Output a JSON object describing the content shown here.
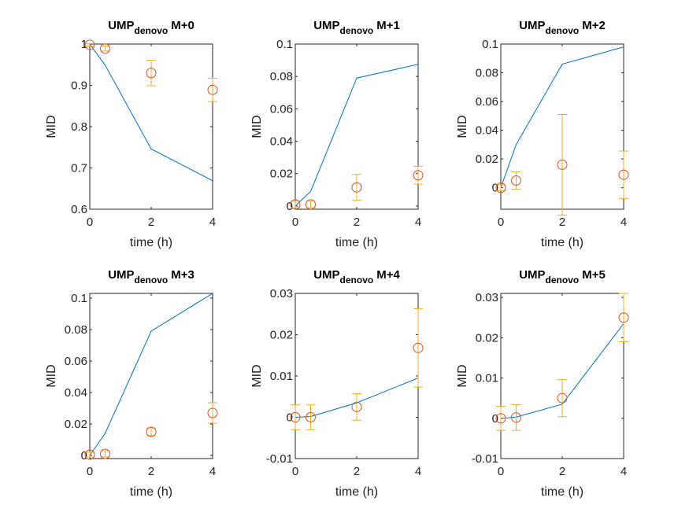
{
  "chart_data": [
    {
      "type": "line",
      "title": "UMP",
      "title_sub": "denovo",
      "title_suffix": "M+0",
      "xlabel": "time (h)",
      "ylabel": "MID",
      "xlim": [
        0,
        4
      ],
      "ylim": [
        0.6,
        1
      ],
      "xticks": [
        0,
        2,
        4
      ],
      "yticks": [
        0.6,
        0.7,
        0.8,
        0.9,
        1
      ],
      "ytick_labels": [
        "0.6",
        "0.7",
        "0.8",
        "0.9",
        "1"
      ],
      "series": [
        {
          "kind": "line",
          "x": [
            0,
            0.5,
            2,
            4
          ],
          "y": [
            1.0,
            0.949,
            0.746,
            0.669
          ]
        },
        {
          "kind": "errorbar",
          "x": [
            0,
            0.5,
            2,
            4
          ],
          "y": [
            0.998,
            0.989,
            0.93,
            0.889
          ],
          "err": [
            0.003,
            0.006,
            0.031,
            0.028
          ]
        }
      ]
    },
    {
      "type": "line",
      "title": "UMP",
      "title_sub": "denovo",
      "title_suffix": "M+1",
      "xlabel": "time (h)",
      "ylabel": "MID",
      "xlim": [
        0,
        4
      ],
      "ylim": [
        -0.002,
        0.1
      ],
      "xticks": [
        0,
        2,
        4
      ],
      "yticks": [
        0,
        0.02,
        0.04,
        0.06,
        0.08,
        0.1
      ],
      "ytick_labels": [
        "0",
        "0.02",
        "0.04",
        "0.06",
        "0.08",
        "0.1"
      ],
      "series": [
        {
          "kind": "line",
          "x": [
            0,
            0.5,
            2,
            4
          ],
          "y": [
            0.0,
            0.009,
            0.079,
            0.0875
          ]
        },
        {
          "kind": "errorbar",
          "x": [
            0,
            0.5,
            2,
            4
          ],
          "y": [
            0.001,
            0.001,
            0.0115,
            0.019
          ],
          "err": [
            0.002,
            0.002,
            0.008,
            0.0055
          ]
        }
      ]
    },
    {
      "type": "line",
      "title": "UMP",
      "title_sub": "denovo",
      "title_suffix": "M+2",
      "xlabel": "time (h)",
      "ylabel": "MID",
      "xlim": [
        0,
        4
      ],
      "ylim": [
        -0.015,
        0.1
      ],
      "xticks": [
        0,
        2,
        4
      ],
      "yticks": [
        0,
        0.02,
        0.04,
        0.06,
        0.08,
        0.1
      ],
      "ytick_labels": [
        "0",
        "0.02",
        "0.04",
        "0.06",
        "0.08",
        "0.1"
      ],
      "series": [
        {
          "kind": "line",
          "x": [
            0,
            0.5,
            2,
            4
          ],
          "y": [
            0.0,
            0.03,
            0.086,
            0.098
          ]
        },
        {
          "kind": "errorbar",
          "x": [
            0,
            0.5,
            2,
            4
          ],
          "y": [
            0.0,
            0.005,
            0.016,
            0.009
          ],
          "err": [
            0.002,
            0.006,
            0.035,
            0.0165
          ]
        }
      ]
    },
    {
      "type": "line",
      "title": "UMP",
      "title_sub": "denovo",
      "title_suffix": "M+3",
      "xlabel": "time (h)",
      "ylabel": "MID",
      "xlim": [
        0,
        4
      ],
      "ylim": [
        -0.002,
        0.103
      ],
      "xticks": [
        0,
        2,
        4
      ],
      "yticks": [
        0,
        0.02,
        0.04,
        0.06,
        0.08,
        0.1
      ],
      "ytick_labels": [
        "0",
        "0.02",
        "0.04",
        "0.06",
        "0.08",
        "0.1"
      ],
      "series": [
        {
          "kind": "line",
          "x": [
            0,
            0.5,
            2,
            4
          ],
          "y": [
            0.0,
            0.014,
            0.079,
            0.103
          ]
        },
        {
          "kind": "errorbar",
          "x": [
            0,
            0.5,
            2,
            4
          ],
          "y": [
            0.0005,
            0.001,
            0.015,
            0.027
          ],
          "err": [
            0.0015,
            0.002,
            0.0025,
            0.0065
          ]
        }
      ]
    },
    {
      "type": "line",
      "title": "UMP",
      "title_sub": "denovo",
      "title_suffix": "M+4",
      "xlabel": "time (h)",
      "ylabel": "MID",
      "xlim": [
        0,
        4
      ],
      "ylim": [
        -0.01,
        0.03
      ],
      "xticks": [
        0,
        2,
        4
      ],
      "yticks": [
        -0.01,
        0,
        0.01,
        0.02,
        0.03
      ],
      "ytick_labels": [
        "-0.01",
        "0",
        "0.01",
        "0.02",
        "0.03"
      ],
      "series": [
        {
          "kind": "line",
          "x": [
            0,
            0.5,
            2,
            4
          ],
          "y": [
            0.0,
            0.0002,
            0.0035,
            0.0095
          ]
        },
        {
          "kind": "errorbar",
          "x": [
            0,
            0.5,
            2,
            4
          ],
          "y": [
            0.0,
            0.0,
            0.0025,
            0.0168
          ],
          "err": [
            0.003,
            0.003,
            0.0032,
            0.0095
          ]
        }
      ]
    },
    {
      "type": "line",
      "title": "UMP",
      "title_sub": "denovo",
      "title_suffix": "M+5",
      "xlabel": "time (h)",
      "ylabel": "MID",
      "xlim": [
        0,
        4
      ],
      "ylim": [
        -0.01,
        0.031
      ],
      "xticks": [
        0,
        2,
        4
      ],
      "yticks": [
        -0.01,
        0,
        0.01,
        0.02,
        0.03
      ],
      "ytick_labels": [
        "-0.01",
        "0",
        "0.01",
        "0.02",
        "0.03"
      ],
      "series": [
        {
          "kind": "line",
          "x": [
            0,
            0.5,
            2,
            4
          ],
          "y": [
            0.0,
            0.0003,
            0.0035,
            0.0235
          ]
        },
        {
          "kind": "errorbar",
          "x": [
            0,
            0.5,
            2,
            4
          ],
          "y": [
            0.0,
            0.0002,
            0.005,
            0.025
          ],
          "err": [
            0.003,
            0.0032,
            0.0046,
            0.006
          ]
        }
      ]
    }
  ],
  "colors": {
    "line": "#0072BD",
    "marker": "#D95319",
    "errorbar": "#EDB120",
    "axes": "#262626"
  }
}
